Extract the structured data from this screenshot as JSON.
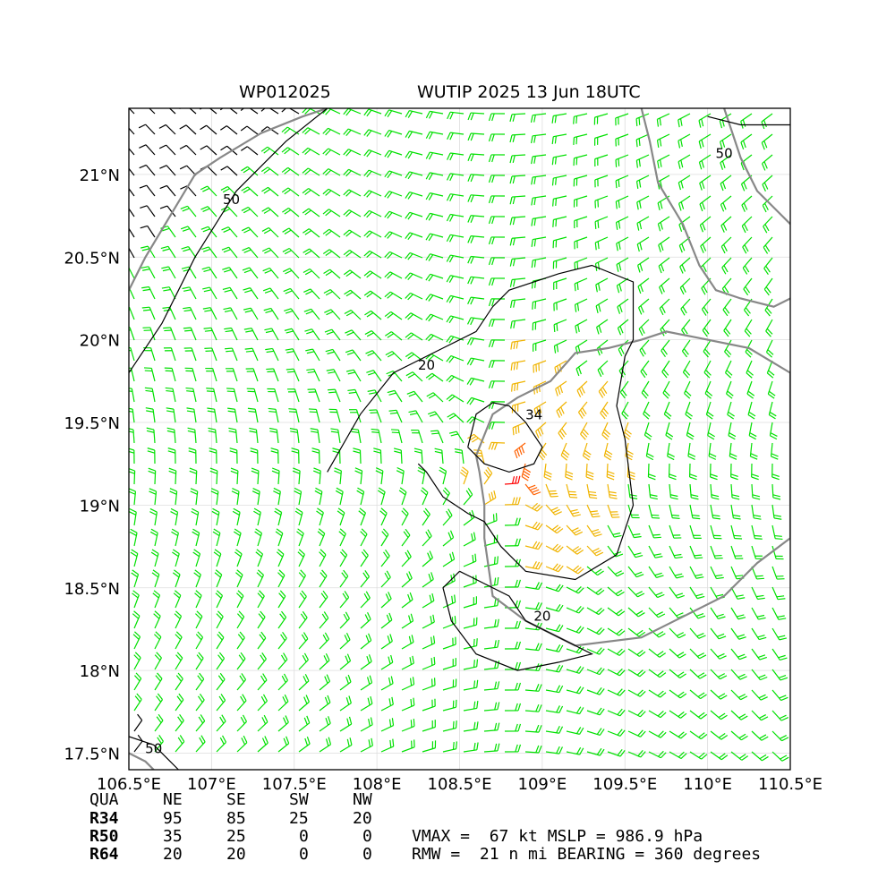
{
  "header": {
    "storm_id": "WP012025",
    "storm_title": "WUTIP 2025 13 Jun 18UTC"
  },
  "chart_data": {
    "type": "wind_barb_map",
    "xlim": [
      106.5,
      110.5
    ],
    "ylim": [
      17.4,
      21.4
    ],
    "x_ticks": [
      106.5,
      107,
      107.5,
      108,
      108.5,
      109,
      109.5,
      110,
      110.5
    ],
    "x_tick_labels": [
      "106.5°E",
      "107°E",
      "107.5°E",
      "108°E",
      "108.5°E",
      "109°E",
      "109.5°E",
      "110°E",
      "110.5°E"
    ],
    "y_ticks": [
      17.5,
      18,
      18.5,
      19,
      19.5,
      20,
      20.5,
      21
    ],
    "y_tick_labels": [
      "17.5°N",
      "18°N",
      "18.5°N",
      "19°N",
      "19.5°N",
      "20°N",
      "20.5°N",
      "21°N"
    ],
    "grid": true,
    "center": {
      "lon": 108.78,
      "lat": 19.22
    },
    "contours": [
      {
        "level": 20,
        "label": "20"
      },
      {
        "level": 34,
        "label": "34"
      },
      {
        "level": 50,
        "label": "50"
      }
    ],
    "colors": {
      "low": "#00e000",
      "r34": "#f0b400",
      "r50": "#ff6000",
      "r64": "#ff0000",
      "weak": "#000000",
      "coast": "#888888",
      "grid": "#dddddd"
    }
  },
  "radii_table": {
    "headers": [
      "QUA",
      "NE",
      "SE",
      "SW",
      "NW"
    ],
    "rows": [
      {
        "label": "R34",
        "values": [
          "95",
          "85",
          "25",
          "20"
        ]
      },
      {
        "label": "R50",
        "values": [
          "35",
          "25",
          "0",
          "0"
        ]
      },
      {
        "label": "R64",
        "values": [
          "20",
          "20",
          "0",
          "0"
        ]
      }
    ]
  },
  "stats": {
    "line1": "VMAX =  67 kt MSLP = 986.9 hPa",
    "line2": "RMW =  21 n mi BEARING = 360 degrees"
  }
}
